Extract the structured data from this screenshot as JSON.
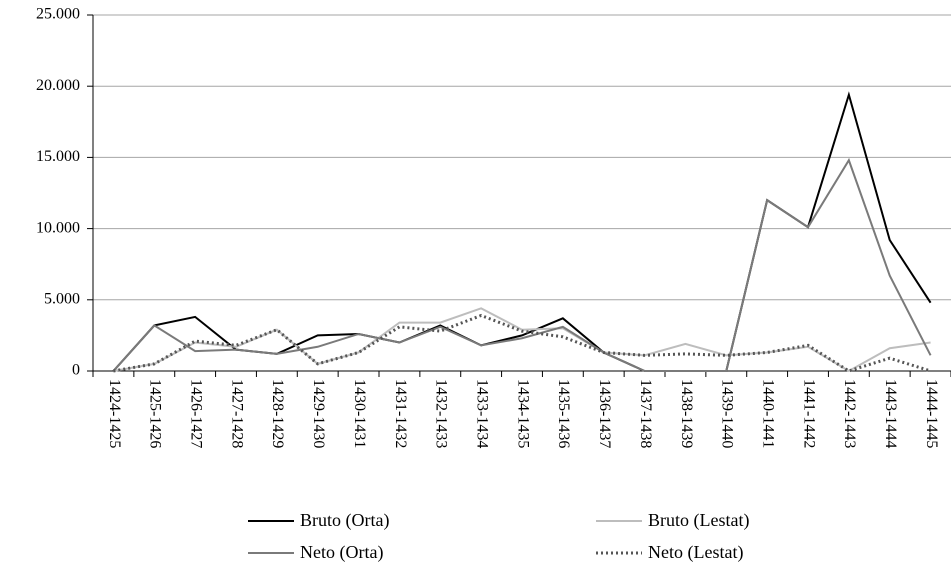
{
  "chart_data": {
    "type": "line",
    "categories": [
      "1424-1425",
      "1425-1426",
      "1426-1427",
      "1427-1428",
      "1428-1429",
      "1429-1430",
      "1430-1431",
      "1431-1432",
      "1432-1433",
      "1433-1434",
      "1434-1435",
      "1435-1436",
      "1436-1437",
      "1437-1438",
      "1438-1439",
      "1439-1440",
      "1440-1441",
      "1441-1442",
      "1442-1443",
      "1443-1444",
      "1444-1445"
    ],
    "series": [
      {
        "name": "Bruto (Orta)",
        "color": "#000000",
        "line_style": "solid",
        "values": [
          0,
          3200,
          3800,
          1500,
          1200,
          2500,
          2600,
          2000,
          3200,
          1800,
          2500,
          3700,
          1300,
          0,
          0,
          0,
          12000,
          10100,
          19400,
          9200,
          4800
        ]
      },
      {
        "name": "Bruto (Lestat)",
        "color": "#bdbdbd",
        "line_style": "solid",
        "values": [
          0,
          500,
          2000,
          1700,
          2900,
          500,
          1300,
          3400,
          3400,
          4400,
          2900,
          3000,
          1300,
          1100,
          1900,
          1100,
          1300,
          1700,
          0,
          1600,
          2000
        ]
      },
      {
        "name": "Neto (Orta)",
        "color": "#7a7a7a",
        "line_style": "solid",
        "values": [
          0,
          3200,
          1400,
          1500,
          1200,
          1700,
          2600,
          2000,
          3100,
          1800,
          2300,
          3100,
          1300,
          0,
          0,
          0,
          12000,
          10100,
          14800,
          6700,
          1100
        ]
      },
      {
        "name": "Neto (Lestat)",
        "color": "#555555",
        "line_style": "dotted",
        "values": [
          0,
          500,
          2100,
          1800,
          2900,
          500,
          1300,
          3100,
          2800,
          3900,
          2800,
          2400,
          1300,
          1100,
          1200,
          1100,
          1300,
          1800,
          0,
          900,
          0
        ]
      }
    ],
    "ylim": [
      0,
      25000
    ],
    "yticks": [
      0,
      {
        "value": 5000,
        "label": "5.000"
      },
      {
        "value": 10000,
        "label": "10.000"
      },
      {
        "value": 15000,
        "label": "15.000"
      },
      {
        "value": 20000,
        "label": "20.000"
      },
      {
        "value": 25000,
        "label": "25.000"
      }
    ],
    "grid": true,
    "legend": "bottom"
  }
}
